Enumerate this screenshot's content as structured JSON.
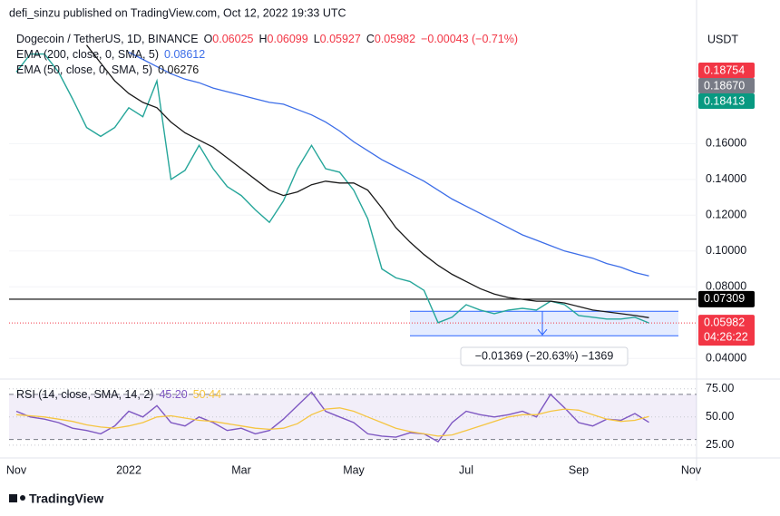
{
  "header": "defi_sinzu published on TradingView.com, Oct 12, 2022 19:33 UTC",
  "axis_unit": "USDT",
  "footer": "TradingView",
  "chart_data": [
    {
      "type": "line",
      "categories": [
        "Nov",
        null,
        null,
        null,
        null,
        null,
        null,
        null,
        "2022",
        null,
        null,
        null,
        null,
        null,
        null,
        null,
        "Mar",
        null,
        null,
        null,
        null,
        null,
        null,
        null,
        "May",
        null,
        null,
        null,
        null,
        null,
        null,
        null,
        "Jul",
        null,
        null,
        null,
        null,
        null,
        null,
        null,
        "Sep",
        null,
        null,
        null,
        null,
        null,
        null,
        null,
        "Nov"
      ],
      "ohlc": [
        {
          "key": "O",
          "value": "0.06025"
        },
        {
          "key": "H",
          "value": "0.06099"
        },
        {
          "key": "L",
          "value": "0.05927"
        },
        {
          "key": "C",
          "value": "0.05982"
        }
      ],
      "change": "−0.00043 (−0.71%)",
      "series": [
        {
          "name": "Dogecoin / TetherUS, 1D, BINANCE",
          "color": "#26a69a",
          "values": [
            0.2,
            0.21,
            0.21,
            0.2,
            0.185,
            0.169,
            0.164,
            0.169,
            0.18,
            0.175,
            0.195,
            0.14,
            0.145,
            0.159,
            0.146,
            0.136,
            0.131,
            0.123,
            0.116,
            0.128,
            0.146,
            0.159,
            0.146,
            0.144,
            0.134,
            0.118,
            0.09,
            0.085,
            0.083,
            0.078,
            0.06,
            0.063,
            0.07,
            0.067,
            0.065,
            0.067,
            0.068,
            0.067,
            0.072,
            0.07,
            0.064,
            0.063,
            0.062,
            0.062,
            0.063,
            0.05982,
            null,
            null,
            null
          ]
        },
        {
          "name": "EMA (200, close, 0, SMA, 5)",
          "legend_value": "0.08612",
          "color": "#3d6ee8",
          "values": [
            null,
            null,
            null,
            null,
            null,
            null,
            null,
            null,
            0.211,
            0.207,
            0.203,
            0.199,
            0.196,
            0.194,
            0.191,
            0.189,
            0.187,
            0.185,
            0.183,
            0.182,
            0.179,
            0.176,
            0.172,
            0.167,
            0.161,
            0.156,
            0.151,
            0.147,
            0.143,
            0.139,
            0.134,
            0.129,
            0.125,
            0.121,
            0.117,
            0.113,
            0.109,
            0.106,
            0.103,
            0.1,
            0.098,
            0.096,
            0.093,
            0.091,
            0.088,
            0.0861,
            null,
            null,
            null
          ]
        },
        {
          "name": "EMA (50, close, 0, SMA, 5)",
          "legend_value": "0.06276",
          "color": "#1a1a1a",
          "values": [
            null,
            null,
            null,
            null,
            null,
            0.215,
            0.205,
            0.195,
            0.188,
            0.183,
            0.18,
            0.172,
            0.166,
            0.162,
            0.158,
            0.152,
            0.146,
            0.14,
            0.134,
            0.131,
            0.133,
            0.137,
            0.139,
            0.138,
            0.138,
            0.134,
            0.124,
            0.113,
            0.105,
            0.098,
            0.092,
            0.087,
            0.083,
            0.079,
            0.076,
            0.074,
            0.073,
            0.072,
            0.072,
            0.071,
            0.069,
            0.067,
            0.066,
            0.065,
            0.064,
            0.06276,
            null,
            null,
            null
          ]
        }
      ],
      "ylim": [
        0.03,
        0.225
      ],
      "yticks": [
        {
          "value": 0.04,
          "label": "0.04000"
        },
        {
          "value": 0.08,
          "label": "0.08000"
        },
        {
          "value": 0.1,
          "label": "0.10000"
        },
        {
          "value": 0.12,
          "label": "0.12000"
        },
        {
          "value": 0.14,
          "label": "0.14000"
        },
        {
          "value": 0.16,
          "label": "0.16000"
        }
      ],
      "price_tags": [
        {
          "value": "0.18754",
          "color": "#f23645"
        },
        {
          "value": "0.18670",
          "color": "#787b86"
        },
        {
          "value": "0.18413",
          "color": "#089981"
        }
      ],
      "level": {
        "value": 0.07309,
        "label": "0.07309",
        "color": "#000000"
      },
      "last_price": {
        "value": 0.05982,
        "label": "0.05982",
        "countdown": "04:26:22",
        "color": "#f23645"
      },
      "measure": {
        "top": 0.06636,
        "bottom": 0.05267,
        "label": "−0.01369 (−20.63%) −1369",
        "color": "#2962ff"
      }
    },
    {
      "type": "line",
      "title": "RSI (14, close, SMA, 14, 2)",
      "legend_values": [
        "45.20",
        "50.44"
      ],
      "series": [
        {
          "color": "#7e57c2",
          "values": [
            55,
            50,
            48,
            45,
            40,
            38,
            35,
            42,
            55,
            50,
            60,
            45,
            42,
            50,
            45,
            38,
            40,
            35,
            38,
            48,
            60,
            72,
            55,
            50,
            45,
            35,
            33,
            32,
            36,
            35,
            28,
            45,
            55,
            52,
            50,
            52,
            55,
            50,
            70,
            58,
            45,
            42,
            48,
            47,
            53,
            45.2,
            null,
            null,
            null
          ]
        },
        {
          "color": "#f5c542",
          "values": [
            52,
            51,
            50,
            48,
            46,
            43,
            41,
            40,
            42,
            45,
            50,
            51,
            49,
            47,
            46,
            44,
            42,
            40,
            39,
            40,
            44,
            52,
            57,
            58,
            55,
            50,
            45,
            40,
            37,
            35,
            33,
            34,
            38,
            42,
            46,
            50,
            52,
            52,
            55,
            57,
            56,
            52,
            48,
            46,
            47,
            50.44,
            null,
            null,
            null
          ]
        }
      ],
      "ylim": [
        16,
        82
      ],
      "yticks": [
        {
          "value": 25,
          "label": "25.00"
        },
        {
          "value": 50,
          "label": "50.00"
        },
        {
          "value": 75,
          "label": "75.00"
        }
      ],
      "bands": [
        70,
        30
      ]
    }
  ]
}
